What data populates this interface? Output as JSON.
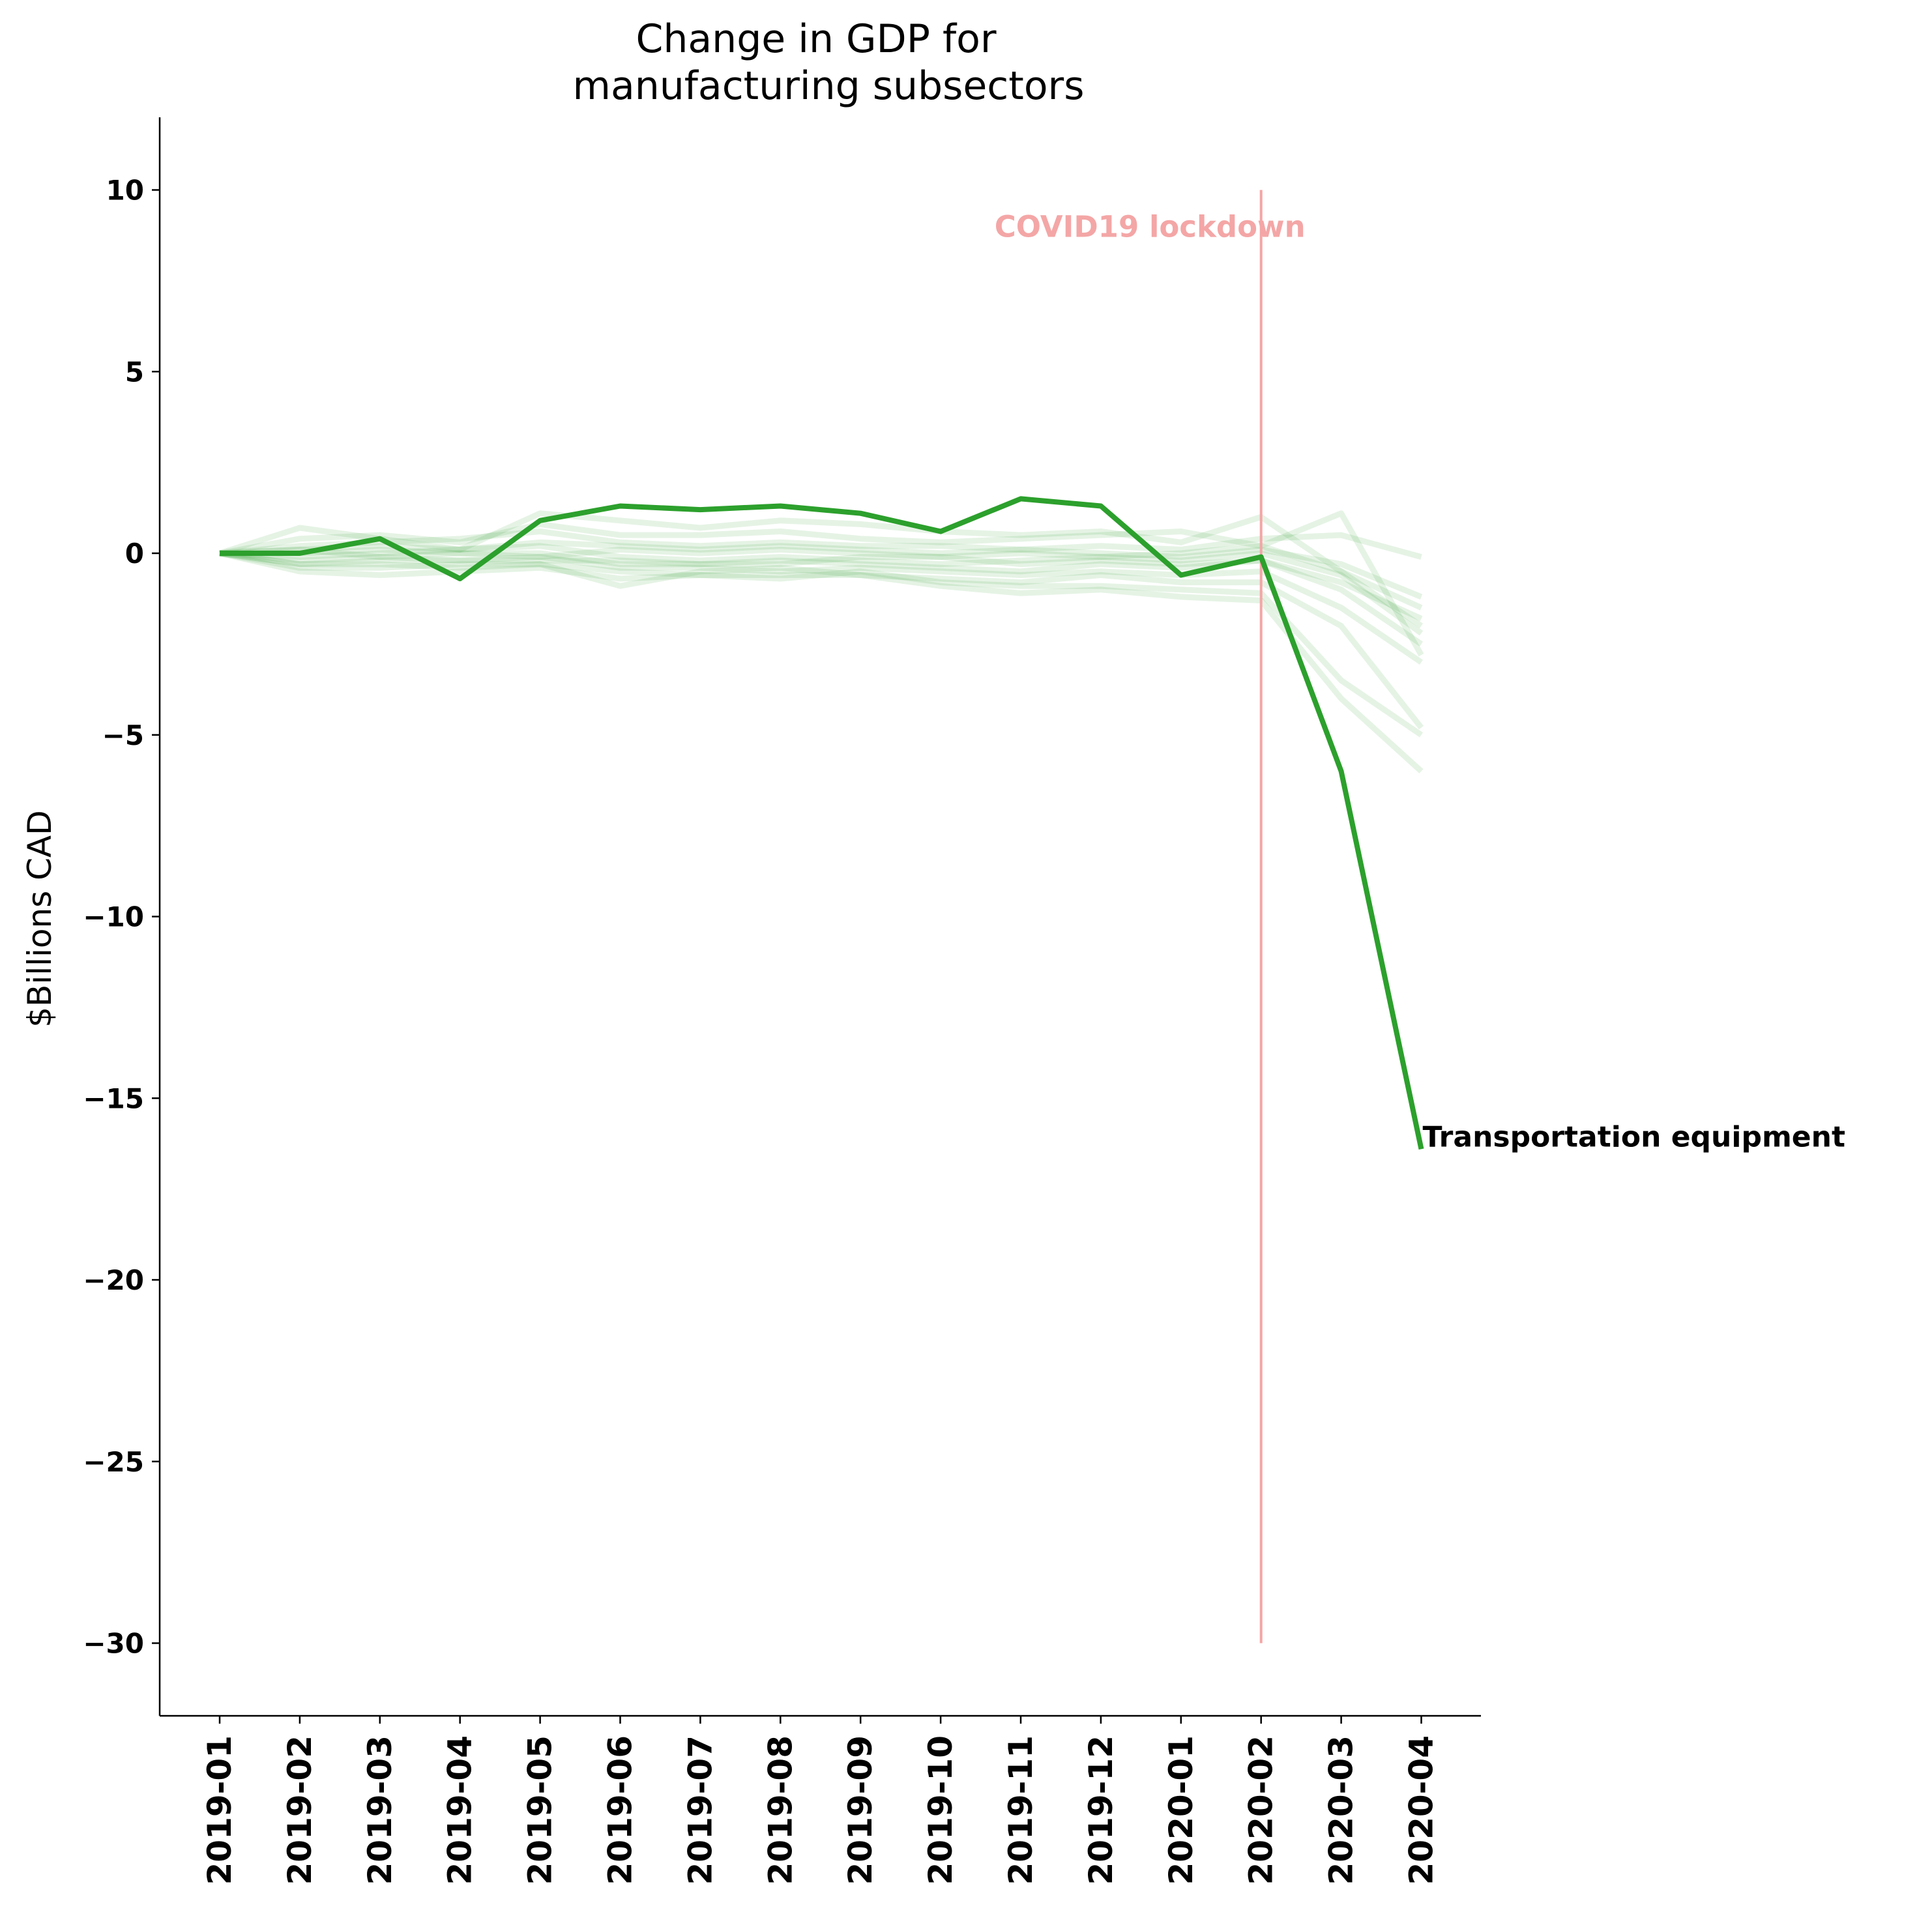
{
  "chart_data": {
    "type": "line",
    "title_lines": [
      "Change in GDP for",
      "manufacturing subsectors"
    ],
    "ylabel": "$Billions CAD",
    "xlabel": "",
    "categories": [
      "2019-01",
      "2019-02",
      "2019-03",
      "2019-04",
      "2019-05",
      "2019-06",
      "2019-07",
      "2019-08",
      "2019-09",
      "2019-10",
      "2019-11",
      "2019-12",
      "2020-01",
      "2020-02",
      "2020-03",
      "2020-04"
    ],
    "ylim": [
      -32,
      12
    ],
    "yticks": [
      10,
      5,
      0,
      -5,
      -10,
      -15,
      -20,
      -25,
      -30
    ],
    "ytick_labels": [
      "10",
      "5",
      "0",
      "−5",
      "−10",
      "−15",
      "−20",
      "−25",
      "−30"
    ],
    "grid": false,
    "highlight_series": {
      "name": "Transportation equipment",
      "color": "#2ca02c",
      "values": [
        0,
        0,
        0.4,
        -0.7,
        0.9,
        1.3,
        1.2,
        1.3,
        1.1,
        0.6,
        1.5,
        1.3,
        -0.6,
        -0.1,
        -6.0,
        -16.4
      ]
    },
    "background_series_color": "#2ca02c",
    "background_series": [
      {
        "values": [
          0,
          0.7,
          0.4,
          0.1,
          1.1,
          0.9,
          0.7,
          0.9,
          0.8,
          0.6,
          0.5,
          0.6,
          0.3,
          1.0,
          -0.5,
          -1.5
        ]
      },
      {
        "values": [
          0,
          0.4,
          0.5,
          0.3,
          0.8,
          0.5,
          0.5,
          0.6,
          0.4,
          0.3,
          0.4,
          0.5,
          0.6,
          0.2,
          1.1,
          -2.8
        ]
      },
      {
        "values": [
          0,
          0.2,
          0.3,
          0.4,
          0.6,
          0.3,
          0.2,
          0.3,
          0.2,
          0.2,
          0.1,
          0.2,
          0.1,
          0.4,
          0.5,
          -0.1
        ]
      },
      {
        "values": [
          0,
          0.1,
          0.2,
          0.1,
          0.3,
          0.2,
          0.1,
          0.2,
          0.1,
          0.0,
          0.1,
          0.0,
          -0.1,
          0.1,
          -0.3,
          -1.2
        ]
      },
      {
        "values": [
          0,
          -0.1,
          0.0,
          0.1,
          0.2,
          -0.1,
          -0.2,
          -0.1,
          -0.2,
          -0.3,
          -0.2,
          -0.1,
          0.0,
          0.2,
          -0.5,
          -2.0
        ]
      },
      {
        "values": [
          0,
          -0.2,
          -0.1,
          0.0,
          0.0,
          -0.3,
          -0.3,
          -0.2,
          -0.3,
          -0.4,
          -0.5,
          -0.3,
          -0.4,
          -0.2,
          -1.0,
          -2.5
        ]
      },
      {
        "values": [
          0,
          -0.3,
          -0.2,
          -0.2,
          -0.1,
          -0.4,
          -0.4,
          -0.5,
          -0.4,
          -0.5,
          -0.6,
          -0.5,
          -0.6,
          -0.5,
          -1.5,
          -3.0
        ]
      },
      {
        "values": [
          0,
          -0.4,
          -0.4,
          -0.3,
          -0.3,
          -0.5,
          -0.6,
          -0.6,
          -0.6,
          -0.7,
          -0.8,
          -0.6,
          -0.8,
          -0.8,
          -2.0,
          -4.8
        ]
      },
      {
        "values": [
          0,
          -0.5,
          -0.6,
          -0.5,
          -0.4,
          -0.7,
          -0.6,
          -0.7,
          -0.5,
          -0.8,
          -0.9,
          -0.9,
          -1.0,
          -1.1,
          -3.5,
          -5.0
        ]
      },
      {
        "values": [
          0,
          -0.3,
          -0.3,
          -0.4,
          -0.3,
          -0.9,
          -0.5,
          -0.4,
          -0.6,
          -0.9,
          -1.1,
          -1.0,
          -1.2,
          -1.3,
          -4.0,
          -6.0
        ]
      },
      {
        "values": [
          0,
          0.1,
          -0.1,
          -0.2,
          -0.2,
          -0.2,
          -0.3,
          -0.3,
          -0.1,
          -0.1,
          -0.3,
          -0.2,
          -0.3,
          -0.2,
          -0.8,
          -1.8
        ]
      },
      {
        "values": [
          0,
          0.0,
          0.1,
          0.0,
          -0.1,
          0.1,
          0.0,
          0.1,
          0.0,
          -0.1,
          0.0,
          -0.1,
          -0.2,
          0.0,
          -0.6,
          -2.2
        ]
      }
    ],
    "annotations": [
      {
        "text": "COVID19 lockdown",
        "x": "2020-02",
        "y": 9.0,
        "color": "#f4a6a6"
      }
    ],
    "vline": {
      "x": "2020-02",
      "ymin": -30,
      "ymax": 10,
      "color": "#f4a6a6"
    }
  }
}
